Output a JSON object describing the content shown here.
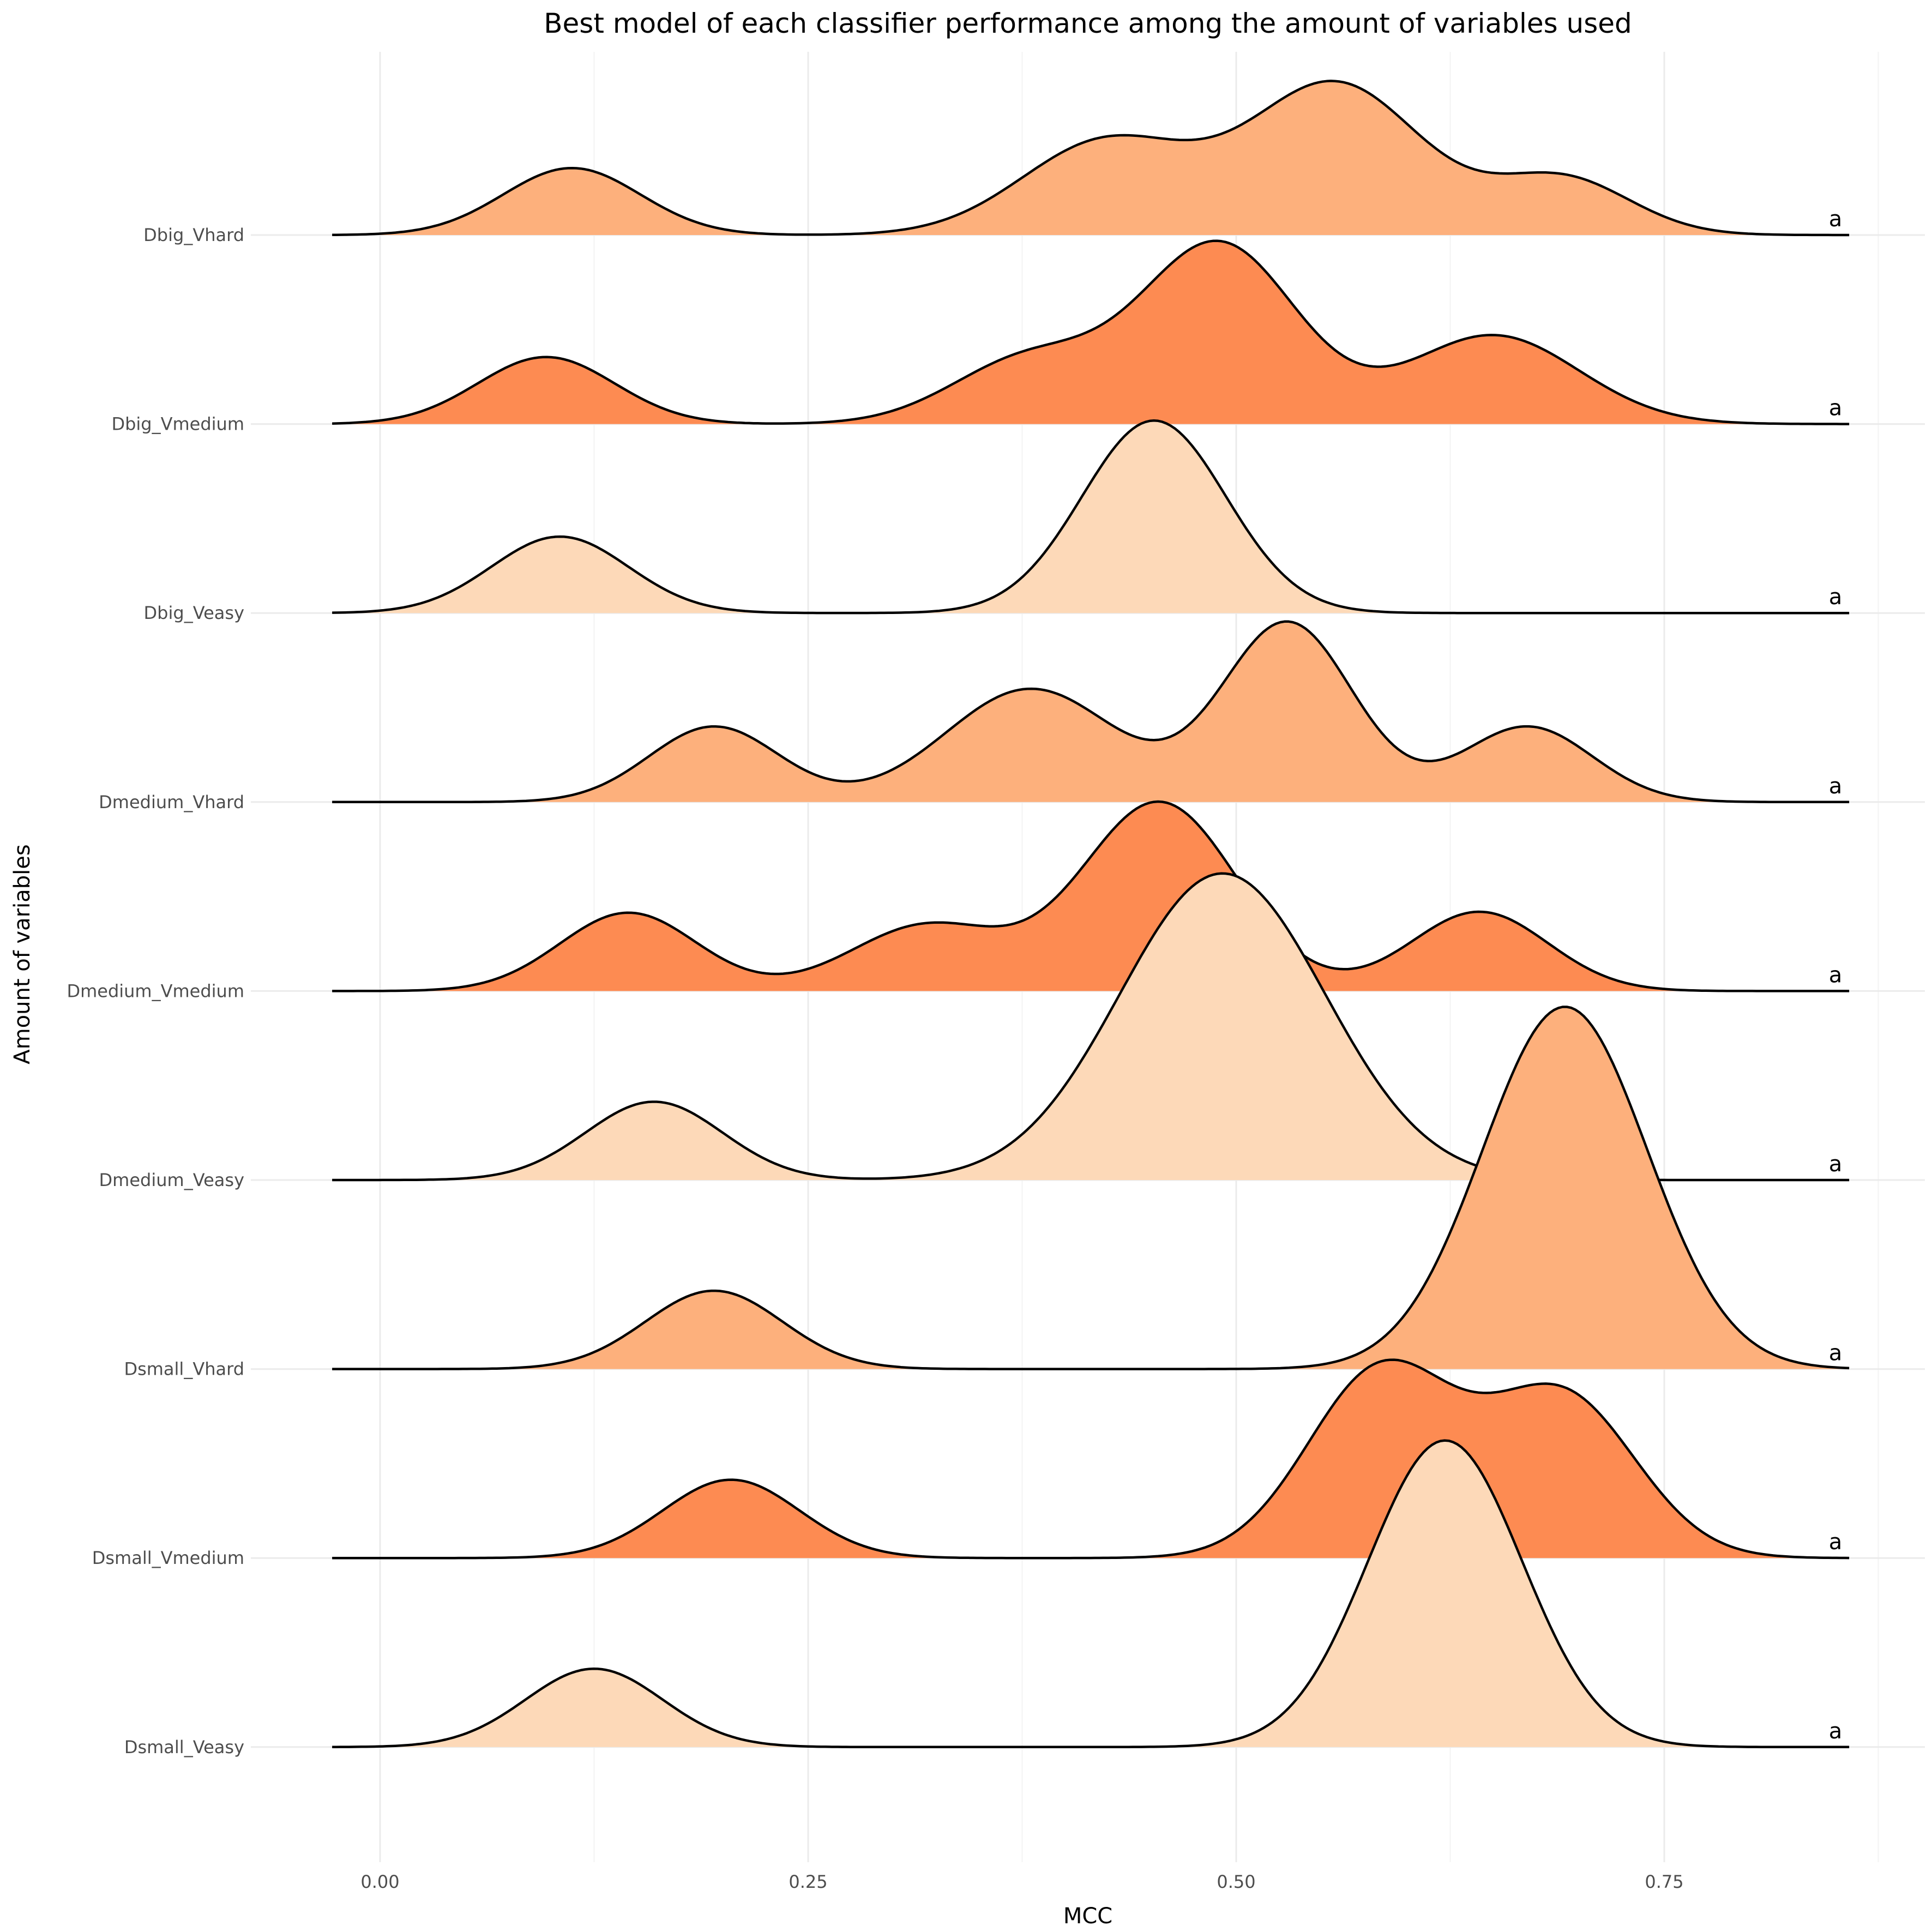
{
  "chart_data": {
    "type": "ridgeline",
    "title": "Best model of each classifier performance among the amount of variables used",
    "xlabel": "MCC",
    "ylabel": "Amount of variables",
    "xlim": [
      -0.028,
      0.858
    ],
    "x_ticks": [
      "0.00",
      "0.25",
      "0.50",
      "0.75"
    ],
    "x_tick_values": [
      0.0,
      0.25,
      0.5,
      0.75
    ],
    "grid": true,
    "legend": "none",
    "annotation": "a",
    "annotation_x": 0.85,
    "fill_colors": {
      "Vhard": "#fdb07c",
      "Vmedium": "#fd8b52",
      "Veasy": "#fdd9b8"
    },
    "series": [
      {
        "name": "Dbig_Vhard",
        "group": "Vhard",
        "components": [
          {
            "mu": 0.112,
            "sd": 0.04,
            "h": 0.355
          },
          {
            "mu": 0.425,
            "sd": 0.05,
            "h": 0.5
          },
          {
            "mu": 0.558,
            "sd": 0.05,
            "h": 0.8
          },
          {
            "mu": 0.69,
            "sd": 0.04,
            "h": 0.3
          }
        ]
      },
      {
        "name": "Dbig_Vmedium",
        "group": "Vmedium",
        "components": [
          {
            "mu": 0.097,
            "sd": 0.04,
            "h": 0.355
          },
          {
            "mu": 0.38,
            "sd": 0.045,
            "h": 0.35
          },
          {
            "mu": 0.49,
            "sd": 0.045,
            "h": 0.95
          },
          {
            "mu": 0.65,
            "sd": 0.05,
            "h": 0.47
          }
        ]
      },
      {
        "name": "Dbig_Veasy",
        "group": "Veasy",
        "components": [
          {
            "mu": 0.105,
            "sd": 0.04,
            "h": 0.405
          },
          {
            "mu": 0.452,
            "sd": 0.042,
            "h": 1.02
          }
        ]
      },
      {
        "name": "Dmedium_Vhard",
        "group": "Vhard",
        "components": [
          {
            "mu": 0.195,
            "sd": 0.038,
            "h": 0.4
          },
          {
            "mu": 0.38,
            "sd": 0.05,
            "h": 0.6
          },
          {
            "mu": 0.53,
            "sd": 0.038,
            "h": 0.95
          },
          {
            "mu": 0.67,
            "sd": 0.038,
            "h": 0.4
          }
        ]
      },
      {
        "name": "Dmedium_Vmedium",
        "group": "Vmedium",
        "components": [
          {
            "mu": 0.145,
            "sd": 0.04,
            "h": 0.415
          },
          {
            "mu": 0.32,
            "sd": 0.045,
            "h": 0.35
          },
          {
            "mu": 0.455,
            "sd": 0.045,
            "h": 1.0
          },
          {
            "mu": 0.642,
            "sd": 0.04,
            "h": 0.42
          }
        ]
      },
      {
        "name": "Dmedium_Veasy",
        "group": "Veasy",
        "components": [
          {
            "mu": 0.16,
            "sd": 0.04,
            "h": 0.415
          },
          {
            "mu": 0.492,
            "sd": 0.06,
            "h": 1.625
          }
        ]
      },
      {
        "name": "Dsmall_Vhard",
        "group": "Vhard",
        "components": [
          {
            "mu": 0.195,
            "sd": 0.04,
            "h": 0.415
          },
          {
            "mu": 0.692,
            "sd": 0.048,
            "h": 1.92
          }
        ]
      },
      {
        "name": "Dsmall_Vmedium",
        "group": "Vmedium",
        "components": [
          {
            "mu": 0.205,
            "sd": 0.04,
            "h": 0.415
          },
          {
            "mu": 0.585,
            "sd": 0.043,
            "h": 1.0
          },
          {
            "mu": 0.69,
            "sd": 0.043,
            "h": 0.86
          }
        ]
      },
      {
        "name": "Dsmall_Veasy",
        "group": "Veasy",
        "components": [
          {
            "mu": 0.125,
            "sd": 0.04,
            "h": 0.415
          },
          {
            "mu": 0.622,
            "sd": 0.045,
            "h": 1.625
          }
        ]
      }
    ]
  }
}
